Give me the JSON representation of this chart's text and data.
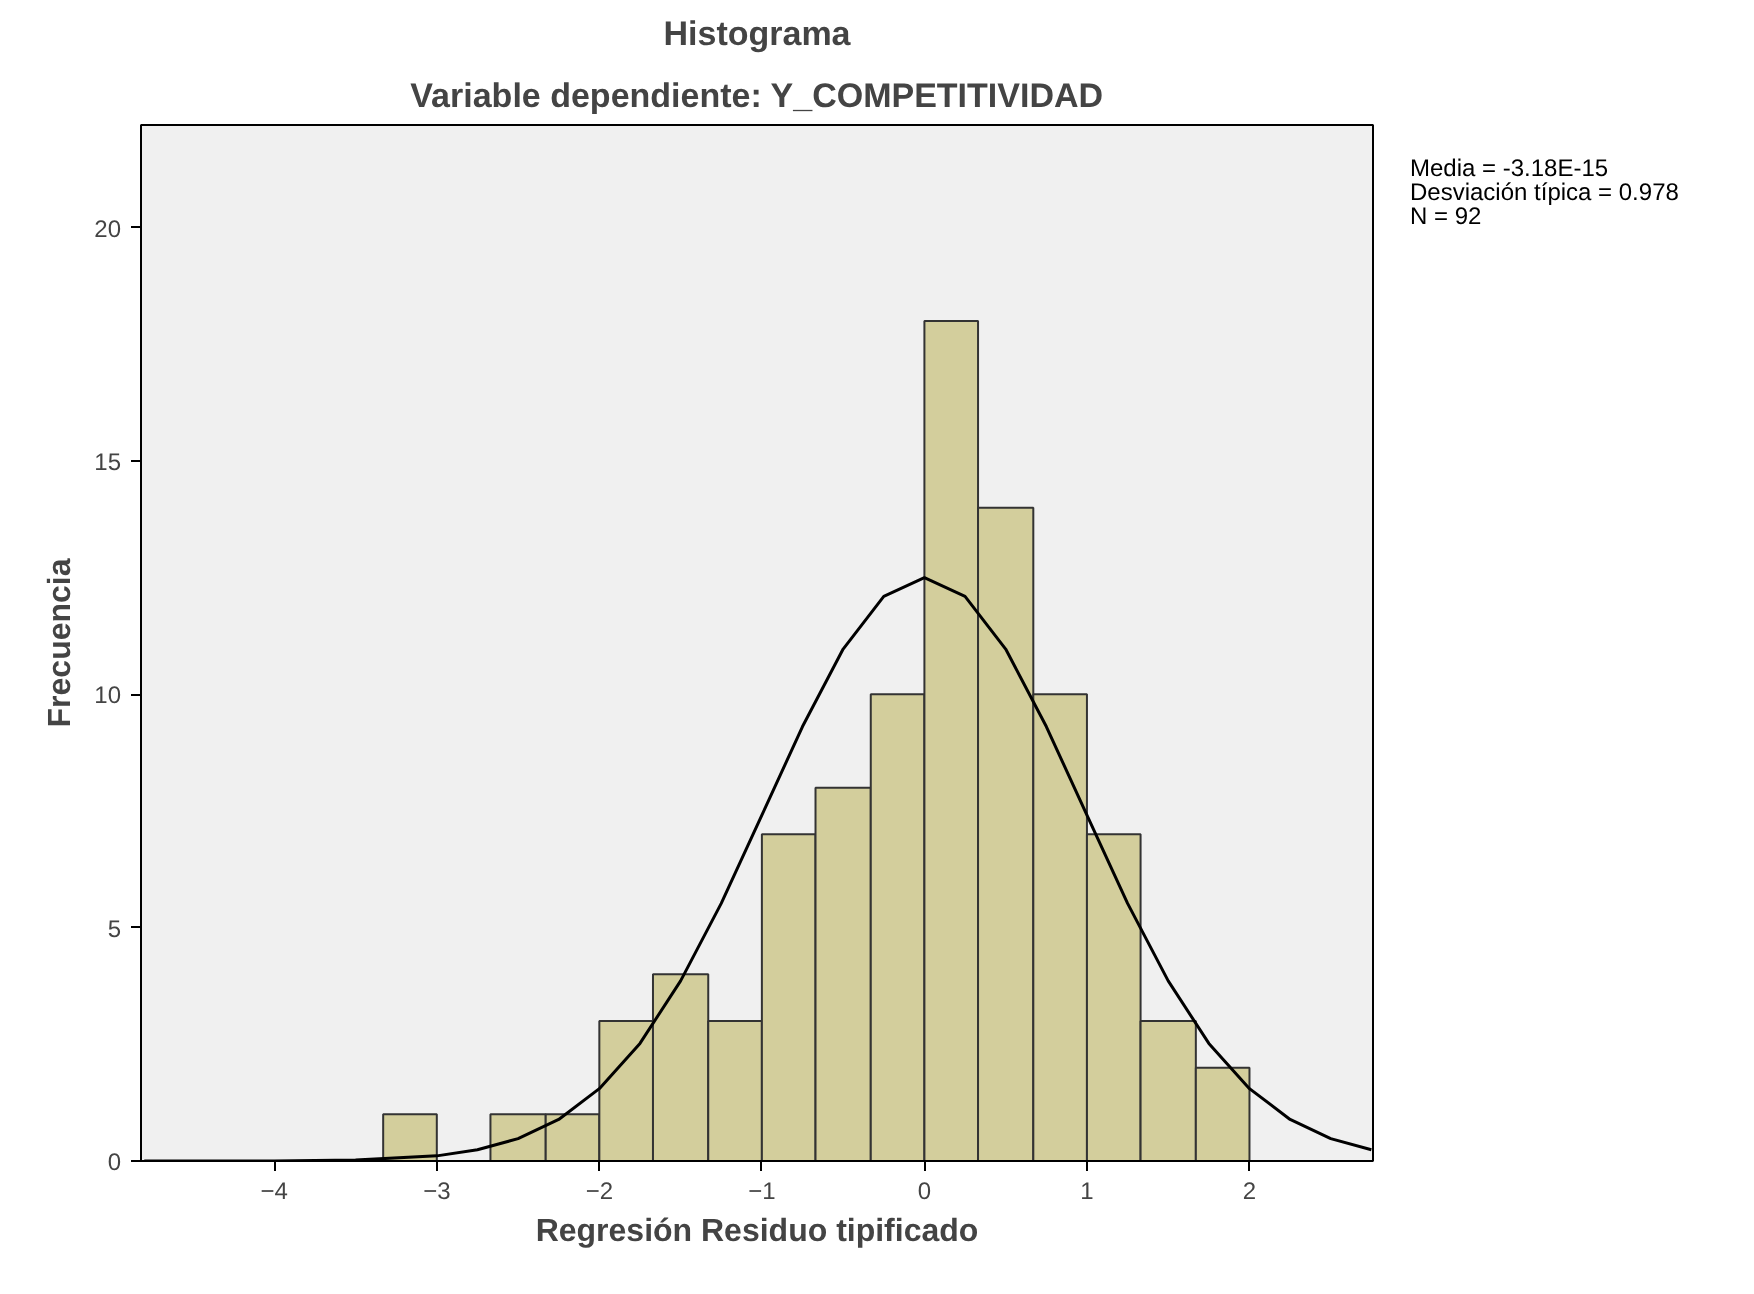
{
  "chart_data": {
    "type": "histogram",
    "title": "Histograma",
    "subtitle": "Variable dependiente: Y_COMPETITIVIDAD",
    "xlabel": "Regresión Residuo tipificado",
    "ylabel": "Frecuencia",
    "series": [
      {
        "bins": [
          -3.33,
          -3,
          -2.67,
          -2.33,
          -2,
          -1.67,
          -1.33,
          -1,
          -0.67,
          -0.33,
          0,
          0.33,
          0.67,
          1,
          1.33,
          1.67,
          2
        ],
        "values": [
          1,
          0,
          1,
          1,
          3,
          4,
          3,
          7,
          8,
          10,
          18,
          14,
          10,
          7,
          3,
          2
        ],
        "color": "#d3ce9c"
      },
      {
        "type": "line",
        "x": [
          -4.8,
          -4,
          -3.5,
          -3,
          -2.75,
          -2.5,
          -2.25,
          -2,
          -1.75,
          -1.5,
          -1.25,
          -1,
          -0.75,
          -0.5,
          -0.25,
          0,
          0.25,
          0.5,
          0.75,
          1,
          1.25,
          1.5,
          1.75,
          2,
          2.25,
          2.5,
          2.75
        ],
        "values": [
          0,
          0,
          0.02,
          0.11,
          0.24,
          0.48,
          0.89,
          1.55,
          2.52,
          3.86,
          5.52,
          7.41,
          9.31,
          10.97,
          12.1,
          12.5,
          12.1,
          10.97,
          9.31,
          7.41,
          5.52,
          3.86,
          2.52,
          1.55,
          0.89,
          0.48,
          0.24
        ],
        "color": "#000000"
      }
    ],
    "xlim": [
      -4.82,
      2.76
    ],
    "ylim": [
      0,
      22.2
    ],
    "xticks": [
      -4,
      -3,
      -2,
      -1,
      0,
      1,
      2
    ],
    "yticks": [
      0,
      5,
      10,
      15,
      20
    ],
    "grid": false,
    "annotations": [
      "Media = -3.18E-15",
      "Desviación típica = 0.978",
      "N = 92"
    ]
  }
}
